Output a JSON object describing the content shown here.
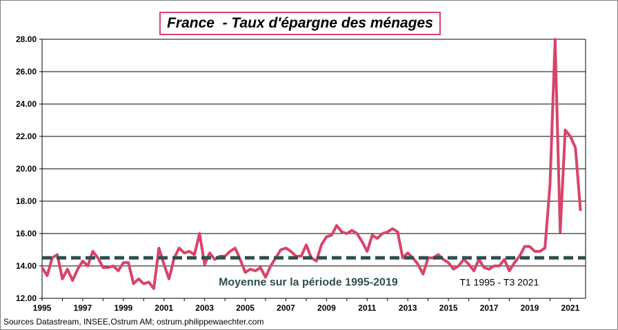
{
  "chart_data": {
    "type": "line",
    "title": "France  - Taux d'épargne des ménages",
    "xlim": [
      1995,
      2021.75
    ],
    "ylim": [
      12,
      28
    ],
    "grid": true,
    "y_ticks": [
      "12.00",
      "14.00",
      "16.00",
      "18.00",
      "20.00",
      "22.00",
      "24.00",
      "26.00",
      "28.00"
    ],
    "y_tick_values": [
      12,
      14,
      16,
      18,
      20,
      22,
      24,
      26,
      28
    ],
    "x_ticks": [
      "1995",
      "1997",
      "1999",
      "2001",
      "2003",
      "2005",
      "2007",
      "2009",
      "2011",
      "2013",
      "2015",
      "2017",
      "2019",
      "2021"
    ],
    "x_tick_values": [
      1995,
      1997,
      1999,
      2001,
      2003,
      2005,
      2007,
      2009,
      2011,
      2013,
      2015,
      2017,
      2019,
      2021
    ],
    "series": [
      {
        "color": "#d9436a",
        "x": [
          1995.0,
          1995.25,
          1995.5,
          1995.75,
          1996.0,
          1996.25,
          1996.5,
          1996.75,
          1997.0,
          1997.25,
          1997.5,
          1997.75,
          1998.0,
          1998.25,
          1998.5,
          1998.75,
          1999.0,
          1999.25,
          1999.5,
          1999.75,
          2000.0,
          2000.25,
          2000.5,
          2000.75,
          2001.0,
          2001.25,
          2001.5,
          2001.75,
          2002.0,
          2002.25,
          2002.5,
          2002.75,
          2003.0,
          2003.25,
          2003.5,
          2003.75,
          2004.0,
          2004.25,
          2004.5,
          2004.75,
          2005.0,
          2005.25,
          2005.5,
          2005.75,
          2006.0,
          2006.25,
          2006.5,
          2006.75,
          2007.0,
          2007.25,
          2007.5,
          2007.75,
          2008.0,
          2008.25,
          2008.5,
          2008.75,
          2009.0,
          2009.25,
          2009.5,
          2009.75,
          2010.0,
          2010.25,
          2010.5,
          2010.75,
          2011.0,
          2011.25,
          2011.5,
          2011.75,
          2012.0,
          2012.25,
          2012.5,
          2012.75,
          2013.0,
          2013.25,
          2013.5,
          2013.75,
          2014.0,
          2014.25,
          2014.5,
          2014.75,
          2015.0,
          2015.25,
          2015.5,
          2015.75,
          2016.0,
          2016.25,
          2016.5,
          2016.75,
          2017.0,
          2017.25,
          2017.5,
          2017.75,
          2018.0,
          2018.25,
          2018.5,
          2018.75,
          2019.0,
          2019.25,
          2019.5,
          2019.75,
          2020.0,
          2020.25,
          2020.5,
          2020.75,
          2021.0,
          2021.25,
          2021.5
        ],
        "values": [
          13.9,
          13.4,
          14.5,
          14.7,
          13.2,
          13.8,
          13.1,
          13.8,
          14.3,
          14.0,
          14.9,
          14.5,
          13.9,
          13.9,
          14.0,
          13.7,
          14.2,
          14.2,
          12.9,
          13.2,
          12.9,
          13.0,
          12.6,
          15.1,
          14.1,
          13.2,
          14.5,
          15.1,
          14.8,
          14.9,
          14.7,
          16.0,
          14.1,
          14.8,
          14.4,
          14.6,
          14.6,
          14.9,
          15.1,
          14.4,
          13.6,
          13.8,
          13.7,
          13.9,
          13.3,
          14.0,
          14.5,
          15.0,
          15.1,
          14.9,
          14.6,
          14.6,
          15.3,
          14.5,
          14.3,
          15.3,
          15.8,
          15.9,
          16.5,
          16.1,
          16.0,
          16.2,
          16.0,
          15.5,
          14.9,
          15.9,
          15.7,
          16.0,
          16.1,
          16.3,
          16.1,
          14.5,
          14.8,
          14.5,
          14.1,
          13.5,
          14.5,
          14.5,
          14.7,
          14.4,
          14.2,
          13.8,
          14.0,
          14.4,
          14.1,
          13.7,
          14.4,
          13.9,
          13.8,
          14.0,
          14.0,
          14.4,
          13.7,
          14.2,
          14.6,
          15.2,
          15.2,
          14.9,
          14.9,
          15.1,
          19.0,
          28.0,
          16.1,
          22.4,
          22.0,
          21.3,
          17.4
        ]
      },
      {
        "name": "Moyenne sur la période 1995-2019",
        "color": "#2e4f4f",
        "style": "dashed",
        "x": [
          1995,
          2021.75
        ],
        "values": [
          14.5,
          14.5
        ]
      }
    ],
    "annotations": [
      "Moyenne sur la période 1995-2019",
      "T1 1995 - T3 2021"
    ]
  },
  "source_note": "Sources Datastream, INSEE,Ostrum AM; ostrum.philippewaechter.com"
}
